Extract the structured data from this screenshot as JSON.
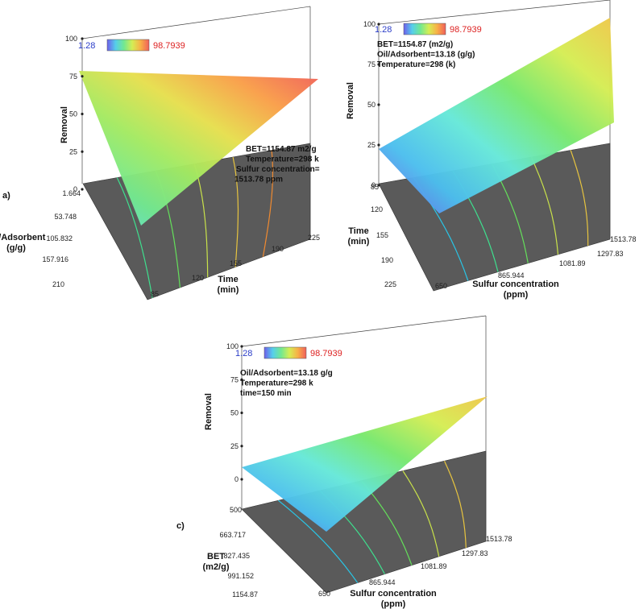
{
  "chart_data": [
    {
      "type": "surface",
      "panel_label": "a)",
      "zlabel": "Removal",
      "z_ticks": [
        "0",
        "25",
        "50",
        "75",
        "100"
      ],
      "color_scale": {
        "min": "1.28",
        "max": "98.7939"
      },
      "x_axis": {
        "label": [
          "Time",
          "(min)"
        ],
        "ticks": [
          "85",
          "120",
          "155",
          "190",
          "225"
        ]
      },
      "y_axis": {
        "label": [
          "Oil/Adsorbent",
          "(g/g)"
        ],
        "ticks": [
          "1.664",
          "53.748",
          "105.832",
          "157.916",
          "210"
        ]
      },
      "annotations": [
        "BET=1154.87 m2/g",
        "Temperature=298 k",
        "Sulfur concentration=",
        "1513.78 ppm"
      ],
      "surface_corners": {
        "x85_y1.664": 75,
        "x225_y1.664": 100,
        "x85_y210": 15,
        "x225_y210": 58
      }
    },
    {
      "type": "surface",
      "panel_label": "",
      "zlabel": "Removal",
      "z_ticks": [
        "0",
        "25",
        "50",
        "75",
        "100"
      ],
      "color_scale": {
        "min": "1.28",
        "max": "98.7939"
      },
      "x_axis": {
        "label": [
          "Sulfur concentration",
          "(ppm)"
        ],
        "ticks": [
          "650",
          "865.944",
          "1081.89",
          "1297.83",
          "1513.78"
        ]
      },
      "y_axis": {
        "label": [
          "Time",
          "(min)"
        ],
        "ticks": [
          "85",
          "120",
          "155",
          "190",
          "225"
        ]
      },
      "annotations": [
        "BET=1154.87 (m2/g)",
        "Oil/Adsorbent=13.18 (g/g)",
        "Temperature=298 (k)"
      ],
      "surface_corners": {
        "x650_y225": 0,
        "x1513.78_y225": 95,
        "x650_y85": 2,
        "x1513.78_y85": 65
      }
    },
    {
      "type": "surface",
      "panel_label": "c)",
      "zlabel": "Removal",
      "z_ticks": [
        "0",
        "25",
        "50",
        "75",
        "100"
      ],
      "color_scale": {
        "min": "1.28",
        "max": "98.7939"
      },
      "x_axis": {
        "label": [
          "Sulfur concentration",
          "(ppm)"
        ],
        "ticks": [
          "650",
          "865.944",
          "1081.89",
          "1297.83",
          "1513.78"
        ]
      },
      "y_axis": {
        "label": [
          "BET",
          "(m2/g)"
        ],
        "ticks": [
          "500",
          "663.717",
          "827.435",
          "991.152",
          "1154.87"
        ]
      },
      "annotations": [
        "Oil/Adsorbent=13.18 g/g",
        "Temperature=298 k",
        "time=150 min"
      ],
      "surface_corners": {
        "x650_y500": 0,
        "x1513.78_y500": 80,
        "x650_y1154.87": 2,
        "x1513.78_y1154.87": 70
      }
    }
  ]
}
